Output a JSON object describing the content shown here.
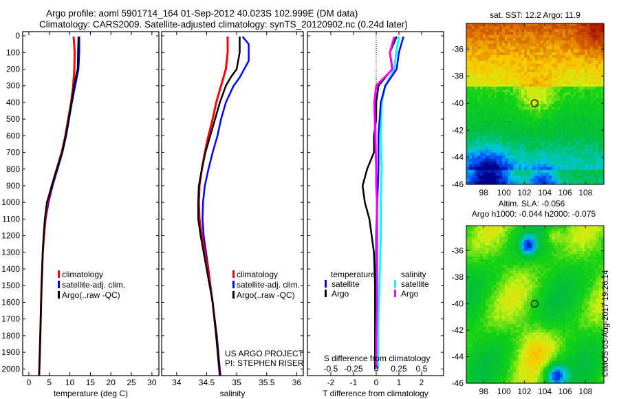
{
  "title": {
    "line1": "Argo profile: aoml 5901714_164 01-Sep-2012 40.023S 102.999E (DM data)",
    "line2": "Climatology: CARS2009. Satellite-adjusted climatology: synTS_20120902.nc (0.24d later)"
  },
  "footer_stamp": "©IMOS 03-Aug-2017 19:26:14",
  "credit": {
    "line1": "US ARGO PROJECT",
    "line2": "PI: STEPHEN RISER"
  },
  "colors": {
    "climatology": "#ff0000",
    "satellite": "#0000ff",
    "argo": "#000000",
    "sal_satellite": "#00ffff",
    "sal_argo": "#ff00ff"
  },
  "chart_data": [
    {
      "type": "line",
      "xlabel": "temperature (deg C)",
      "ylabel": "depth",
      "xlim": [
        -1.5,
        31.7
      ],
      "ylim": [
        2040,
        -25
      ],
      "xticks": [
        "0",
        "5",
        "10",
        "15",
        "20",
        "25",
        "30"
      ],
      "xtick_values": [
        0,
        5,
        10,
        15,
        20,
        25,
        30
      ],
      "yticks": [
        "0",
        "100",
        "200",
        "300",
        "400",
        "500",
        "600",
        "700",
        "800",
        "900",
        "1000",
        "1100",
        "1200",
        "1300",
        "1400",
        "1500",
        "1600",
        "1700",
        "1800",
        "1900",
        "2000"
      ],
      "ytick_values": [
        0,
        100,
        200,
        300,
        400,
        500,
        600,
        700,
        800,
        900,
        1000,
        1100,
        1200,
        1300,
        1400,
        1500,
        1600,
        1700,
        1800,
        1900,
        2000
      ],
      "legend": [
        "climatology",
        "satellite-adj. clim.",
        "Argo(..raw -QC)"
      ],
      "series": [
        {
          "name": "climatology",
          "depth": [
            5,
            100,
            200,
            300,
            400,
            500,
            600,
            700,
            800,
            900,
            1000,
            1100,
            1200,
            1300,
            1500,
            1800,
            2040
          ],
          "values": [
            10.9,
            11.2,
            11.1,
            10.8,
            10.3,
            9.6,
            8.9,
            8.0,
            6.8,
            5.6,
            4.6,
            4.0,
            3.7,
            3.4,
            3.1,
            2.8,
            2.5
          ]
        },
        {
          "name": "satellite-adj. clim.",
          "depth": [
            5,
            100,
            200,
            300,
            400,
            500,
            600,
            700,
            800,
            900,
            1000,
            1100,
            1200,
            1300,
            1500,
            1800,
            2040
          ],
          "values": [
            12.3,
            12.3,
            12.1,
            11.3,
            10.5,
            9.8,
            9.1,
            8.2,
            7.0,
            5.8,
            4.8,
            4.1,
            3.7,
            3.4,
            3.1,
            2.8,
            2.5
          ]
        },
        {
          "name": "Argo(..raw -QC)",
          "depth": [
            5,
            100,
            200,
            230,
            300,
            400,
            500,
            600,
            700,
            800,
            900,
            1000,
            1100,
            1200,
            1300,
            1500,
            1800,
            2040
          ],
          "values": [
            12.1,
            12.0,
            11.9,
            11.6,
            11.0,
            10.4,
            9.7,
            9.0,
            8.1,
            6.8,
            5.6,
            4.4,
            3.9,
            3.6,
            3.4,
            3.1,
            2.8,
            2.5
          ]
        }
      ]
    },
    {
      "type": "line",
      "xlabel": "salinity",
      "xlim": [
        33.75,
        36.11
      ],
      "ylim": [
        2040,
        -25
      ],
      "xticks": [
        "34",
        "34.5",
        "35",
        "35.5",
        "36"
      ],
      "xtick_values": [
        34,
        34.5,
        35,
        35.5,
        36
      ],
      "legend": [
        "climatology",
        "satellite-adj. clim.",
        "Argo(..raw -QC)"
      ],
      "series": [
        {
          "name": "climatology",
          "depth": [
            5,
            100,
            200,
            300,
            400,
            500,
            600,
            700,
            800,
            900,
            1000,
            1100,
            1200,
            1400,
            1600,
            1800,
            2040
          ],
          "values": [
            34.85,
            34.85,
            34.82,
            34.74,
            34.66,
            34.6,
            34.53,
            34.47,
            34.42,
            34.38,
            34.37,
            34.38,
            34.42,
            34.52,
            34.6,
            34.66,
            34.72
          ]
        },
        {
          "name": "satellite-adj. clim.",
          "depth": [
            5,
            50,
            150,
            250,
            300,
            400,
            500,
            600,
            700,
            800,
            900,
            1000,
            1100,
            1200,
            1400,
            1600,
            1800,
            2040
          ],
          "values": [
            35.1,
            35.2,
            35.2,
            35.05,
            34.95,
            34.82,
            34.74,
            34.68,
            34.6,
            34.53,
            34.47,
            34.44,
            34.43,
            34.45,
            34.53,
            34.6,
            34.67,
            34.73
          ]
        },
        {
          "name": "Argo(..raw -QC)",
          "depth": [
            5,
            100,
            200,
            250,
            300,
            400,
            500,
            600,
            700,
            800,
            900,
            1000,
            1100,
            1200,
            1400,
            1600,
            1800,
            2040
          ],
          "values": [
            35.05,
            35.05,
            35.0,
            34.9,
            34.82,
            34.72,
            34.64,
            34.56,
            34.48,
            34.42,
            34.37,
            34.36,
            34.36,
            34.4,
            34.5,
            34.6,
            34.66,
            34.72
          ]
        }
      ]
    },
    {
      "type": "line",
      "xlabel": "T difference from climatology",
      "x2label": "S difference from climatology",
      "xlim": [
        -3.03,
        2.97
      ],
      "ylim": [
        2040,
        -25
      ],
      "xticks": [
        "-2",
        "-1",
        "0",
        "1",
        "2"
      ],
      "xtick_values": [
        -2,
        -1,
        0,
        1,
        2
      ],
      "x2ticks": [
        "-0.5",
        "-0.25",
        "0",
        "0.25",
        "0.5"
      ],
      "x2tick_values": [
        -0.5,
        -0.25,
        0,
        0.25,
        0.5
      ],
      "legend": {
        "temperature_title": "temperature",
        "salinity_title": "salinity",
        "items": [
          "satellite",
          "Argo",
          "satellite",
          "Argo"
        ]
      },
      "series": [
        {
          "name": "temperature satellite",
          "depth": [
            5,
            100,
            200,
            300,
            400,
            600,
            800,
            1000,
            1200,
            1400,
            1600,
            1800,
            2000
          ],
          "values": [
            1.2,
            1.0,
            0.9,
            0.4,
            0.2,
            0.1,
            0.1,
            0.05,
            0.0,
            0.0,
            0.0,
            0.0,
            0.0
          ]
        },
        {
          "name": "temperature Argo",
          "depth": [
            5,
            100,
            200,
            250,
            300,
            400,
            500,
            600,
            700,
            800,
            900,
            1000,
            1100,
            1200,
            1300,
            1500,
            1800,
            2000
          ],
          "values": [
            0.9,
            0.6,
            0.7,
            0.4,
            0.1,
            0.0,
            0.0,
            -0.1,
            -0.1,
            -0.4,
            -0.6,
            -0.5,
            -0.3,
            -0.2,
            -0.1,
            -0.05,
            -0.05,
            -0.05
          ]
        },
        {
          "name": "salinity satellite",
          "depth": [
            5,
            100,
            200,
            300,
            400,
            600,
            800,
            1000,
            1200,
            1400,
            1600,
            1800,
            2000
          ],
          "values": [
            0.25,
            0.22,
            0.2,
            0.1,
            0.06,
            0.05,
            0.06,
            0.05,
            0.05,
            0.04,
            0.03,
            0.02,
            0.02
          ]
        },
        {
          "name": "salinity Argo",
          "depth": [
            5,
            100,
            200,
            300,
            400,
            600,
            800,
            900,
            1000,
            1200,
            1400,
            1600,
            1800,
            2000
          ],
          "values": [
            0.2,
            0.15,
            0.18,
            0.0,
            -0.02,
            -0.01,
            0.0,
            0.0,
            0.01,
            0.01,
            0.01,
            0.01,
            0.0,
            0.0
          ]
        }
      ]
    },
    {
      "type": "heatmap",
      "title": "sat. SST: 12.2 Argo: 11.9",
      "xlim": [
        96.3,
        109.8
      ],
      "ylim": [
        -46,
        -34.1
      ],
      "xticks": [
        "98",
        "100",
        "102",
        "104",
        "106",
        "108"
      ],
      "xtick_values": [
        98,
        100,
        102,
        104,
        106,
        108
      ],
      "yticks": [
        "-36",
        "-38",
        "-40",
        "-42",
        "-44",
        "-46"
      ],
      "ytick_values": [
        -36,
        -38,
        -40,
        -42,
        -44,
        -46
      ],
      "marker": [
        103.0,
        -40.0
      ]
    },
    {
      "type": "heatmap",
      "title": "Altim. SLA: -0.056",
      "subtitle": "Argo h1000: -0.044 h2000: -0.075",
      "xlim": [
        96.3,
        109.8
      ],
      "ylim": [
        -46,
        -34.1
      ],
      "xticks": [
        "98",
        "100",
        "102",
        "104",
        "106",
        "108"
      ],
      "xtick_values": [
        98,
        100,
        102,
        104,
        106,
        108
      ],
      "yticks": [
        "-36",
        "-38",
        "-40",
        "-42",
        "-44",
        "-46"
      ],
      "ytick_values": [
        -36,
        -38,
        -40,
        -42,
        -44,
        -46
      ],
      "marker": [
        103.0,
        -40.0
      ]
    }
  ]
}
